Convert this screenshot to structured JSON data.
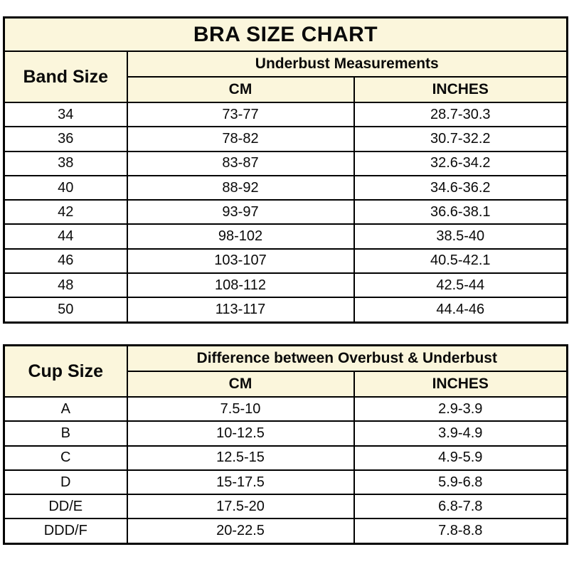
{
  "title": "BRA SIZE CHART",
  "colors": {
    "header_bg": "#FBF6DC",
    "row_bg": "#FFFFFF",
    "border": "#000000",
    "text": "#0A0A0A"
  },
  "chart_data": [
    {
      "type": "table",
      "name": "band-size-table",
      "corner_header": "Band Size",
      "group_header": "Underbust Measurements",
      "sub_columns": [
        "CM",
        "INCHES"
      ],
      "rows": [
        [
          "34",
          "73-77",
          "28.7-30.3"
        ],
        [
          "36",
          "78-82",
          "30.7-32.2"
        ],
        [
          "38",
          "83-87",
          "32.6-34.2"
        ],
        [
          "40",
          "88-92",
          "34.6-36.2"
        ],
        [
          "42",
          "93-97",
          "36.6-38.1"
        ],
        [
          "44",
          "98-102",
          "38.5-40"
        ],
        [
          "46",
          "103-107",
          "40.5-42.1"
        ],
        [
          "48",
          "108-112",
          "42.5-44"
        ],
        [
          "50",
          "113-117",
          "44.4-46"
        ]
      ]
    },
    {
      "type": "table",
      "name": "cup-size-table",
      "corner_header": "Cup Size",
      "group_header": "Difference between Overbust & Underbust",
      "sub_columns": [
        "CM",
        "INCHES"
      ],
      "rows": [
        [
          "A",
          "7.5-10",
          "2.9-3.9"
        ],
        [
          "B",
          "10-12.5",
          "3.9-4.9"
        ],
        [
          "C",
          "12.5-15",
          "4.9-5.9"
        ],
        [
          "D",
          "15-17.5",
          "5.9-6.8"
        ],
        [
          "DD/E",
          "17.5-20",
          "6.8-7.8"
        ],
        [
          "DDD/F",
          "20-22.5",
          "7.8-8.8"
        ]
      ]
    }
  ]
}
